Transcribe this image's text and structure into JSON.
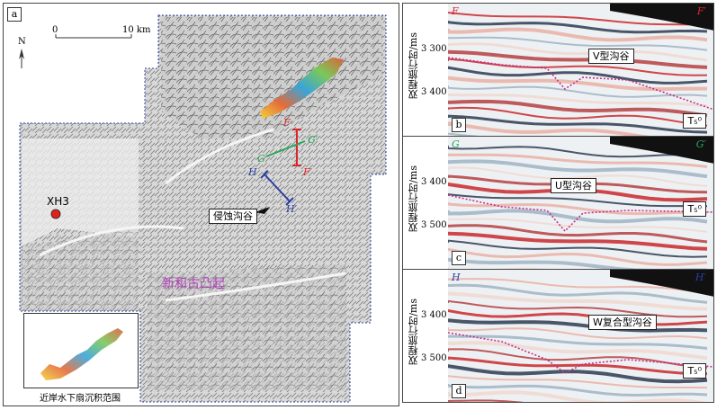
{
  "map": {
    "panel_label": "a",
    "scale": {
      "zero": "0",
      "ten": "10 km"
    },
    "north": "N",
    "well": "XH3",
    "callout": "侵蚀沟谷",
    "uplift_label": "新和古凸起",
    "lines": {
      "F": "F",
      "F_prime": "F′",
      "G": "G",
      "G_prime": "G′",
      "H": "H",
      "H_prime": "H′"
    },
    "inset_caption": "近岸水下扇沉积范围",
    "colors": {
      "F": "#d9262b",
      "G": "#2aa55a",
      "H": "#2b3fa0",
      "uplift": "#b03fb8",
      "well": "#e0201b"
    }
  },
  "sections": [
    {
      "label": "b",
      "left_tag": "F",
      "right_tag": "F′",
      "ylabel": "双程旅行时/ms",
      "ticks": [
        "3 300",
        "3 400"
      ],
      "callout": "V型沟谷",
      "horizon": "T₅⁰",
      "tag_color": "#d9262b"
    },
    {
      "label": "c",
      "left_tag": "G",
      "right_tag": "G′",
      "ylabel": "双程旅行时/ms",
      "ticks": [
        "3 400",
        "3 500"
      ],
      "callout": "U型沟谷",
      "horizon": "T₅⁰",
      "tag_color": "#2aa55a"
    },
    {
      "label": "d",
      "left_tag": "H",
      "right_tag": "H′",
      "ylabel": "双程旅行时/ms",
      "ticks": [
        "3 400",
        "3 500"
      ],
      "callout": "W复合型沟谷",
      "horizon": "T₅⁰",
      "tag_color": "#2b3fa0"
    }
  ]
}
